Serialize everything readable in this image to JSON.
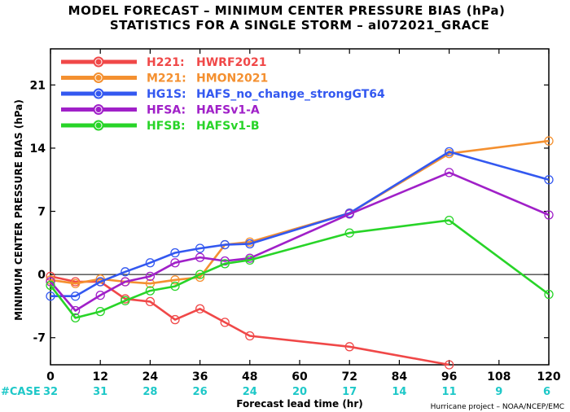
{
  "title_line1": "MODEL FORECAST – MINIMUM CENTER PRESSURE BIAS (hPa)",
  "title_line2": "STATISTICS FOR A SINGLE STORM – al072021_GRACE",
  "credit": "Hurricane project – NOAA/NCEP/EMC",
  "case_label": "#CASE",
  "case_color": "#1ec8c8",
  "case_counts": [
    "32",
    "31",
    "28",
    "26",
    "24",
    "20",
    "17",
    "14",
    "11",
    "9",
    "6"
  ],
  "chart_data": {
    "type": "line",
    "title": "MODEL FORECAST – MINIMUM CENTER PRESSURE BIAS (hPa)",
    "subtitle": "STATISTICS FOR A SINGLE STORM – al072021_GRACE",
    "xlabel": "Forecast lead time (hr)",
    "ylabel": "MINIMUM CENTER PRESSURE BIAS (hPa)",
    "xlim": [
      0,
      120
    ],
    "ylim": [
      -10,
      25
    ],
    "xticks": [
      0,
      12,
      24,
      36,
      48,
      60,
      72,
      84,
      96,
      108,
      120
    ],
    "yticks": [
      -7,
      0,
      7,
      14,
      21
    ],
    "zero_line": true,
    "legend_position": "top-left",
    "series": [
      {
        "code": "H221",
        "name": "HWRF2021",
        "color": "#f04848",
        "points": [
          [
            0,
            -0.2
          ],
          [
            6,
            -0.8
          ],
          [
            12,
            -0.8
          ],
          [
            18,
            -2.7
          ],
          [
            24,
            -3.0
          ],
          [
            30,
            -5.0
          ],
          [
            36,
            -3.8
          ],
          [
            42,
            -5.3
          ],
          [
            48,
            -6.8
          ],
          [
            72,
            -8.0
          ],
          [
            96,
            -10.0
          ]
        ]
      },
      {
        "code": "M221",
        "name": "HMON2021",
        "color": "#f49030",
        "points": [
          [
            0,
            -0.6
          ],
          [
            6,
            -1.0
          ],
          [
            12,
            -0.5
          ],
          [
            18,
            -0.8
          ],
          [
            24,
            -1.0
          ],
          [
            30,
            -0.6
          ],
          [
            36,
            -0.3
          ],
          [
            42,
            3.3
          ],
          [
            48,
            3.6
          ],
          [
            72,
            6.8
          ],
          [
            96,
            13.4
          ],
          [
            120,
            14.8
          ]
        ]
      },
      {
        "code": "HG1S",
        "name": "HAFS_no_change_strongGT64",
        "color": "#3358f0",
        "points": [
          [
            0,
            -2.4
          ],
          [
            6,
            -2.4
          ],
          [
            12,
            -0.8
          ],
          [
            18,
            0.3
          ],
          [
            24,
            1.3
          ],
          [
            30,
            2.4
          ],
          [
            36,
            2.9
          ],
          [
            42,
            3.3
          ],
          [
            48,
            3.4
          ],
          [
            72,
            6.8
          ],
          [
            96,
            13.6
          ],
          [
            120,
            10.5
          ]
        ]
      },
      {
        "code": "HFSA",
        "name": "HAFSv1-A",
        "color": "#a020c8",
        "points": [
          [
            0,
            -0.8
          ],
          [
            6,
            -4.0
          ],
          [
            12,
            -2.3
          ],
          [
            18,
            -0.8
          ],
          [
            24,
            -0.2
          ],
          [
            30,
            1.3
          ],
          [
            36,
            1.9
          ],
          [
            42,
            1.5
          ],
          [
            48,
            1.8
          ],
          [
            72,
            6.7
          ],
          [
            96,
            11.3
          ],
          [
            120,
            6.6
          ]
        ]
      },
      {
        "code": "HFSB",
        "name": "HAFSv1-B",
        "color": "#28d428",
        "points": [
          [
            0,
            -1.2
          ],
          [
            6,
            -4.8
          ],
          [
            12,
            -4.1
          ],
          [
            18,
            -2.9
          ],
          [
            24,
            -1.8
          ],
          [
            30,
            -1.3
          ],
          [
            36,
            0.0
          ],
          [
            42,
            1.2
          ],
          [
            48,
            1.6
          ],
          [
            72,
            4.6
          ],
          [
            96,
            6.0
          ],
          [
            120,
            -2.2
          ]
        ]
      }
    ]
  }
}
